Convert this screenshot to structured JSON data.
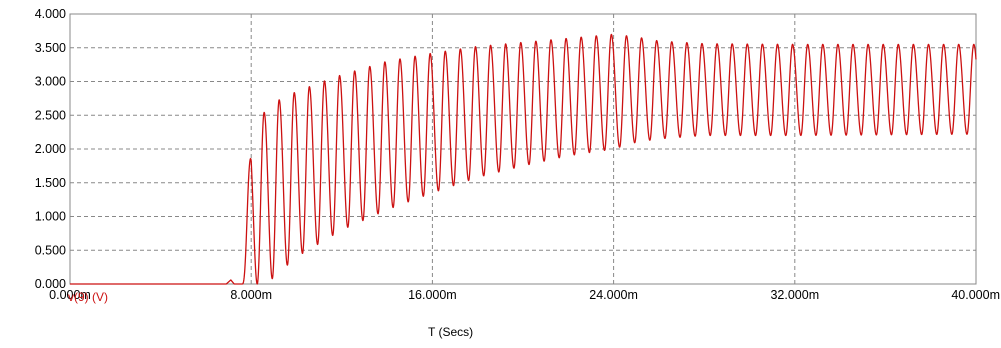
{
  "chart_data": {
    "type": "line",
    "title": "",
    "xlabel": "T (Secs)",
    "ylabel": "v(9) (V)",
    "xlim": [
      0,
      40
    ],
    "ylim": [
      0,
      4
    ],
    "x_unit": "m",
    "grid": true,
    "x_ticks": [
      0,
      8,
      16,
      24,
      32,
      40
    ],
    "x_tick_labels": [
      "0.000m",
      "8.000m",
      "16.000m",
      "24.000m",
      "32.000m",
      "40.000m"
    ],
    "y_ticks": [
      0,
      0.5,
      1,
      1.5,
      2,
      2.5,
      3,
      3.5,
      4
    ],
    "y_tick_labels": [
      "0.000",
      "0.500",
      "1.000",
      "1.500",
      "2.000",
      "2.500",
      "3.000",
      "3.500",
      "4.000"
    ],
    "series": [
      {
        "name": "v(9) (V)",
        "color": "#cc1111",
        "start_time": 7.6,
        "ripple_period": 0.6667,
        "ripple_duty": 0.45,
        "envelope_points": [
          {
            "t": 7.6,
            "low": 0.0,
            "high": 0.0
          },
          {
            "t": 8.0,
            "low": 0.0,
            "high": 2.2
          },
          {
            "t": 8.667,
            "low": 0.0,
            "high": 2.6
          },
          {
            "t": 9.333,
            "low": 0.2,
            "high": 2.75
          },
          {
            "t": 10.0,
            "low": 0.4,
            "high": 2.85
          },
          {
            "t": 11.0,
            "low": 0.6,
            "high": 2.98
          },
          {
            "t": 12.0,
            "low": 0.8,
            "high": 3.1
          },
          {
            "t": 14.0,
            "low": 1.1,
            "high": 3.3
          },
          {
            "t": 16.0,
            "low": 1.35,
            "high": 3.42
          },
          {
            "t": 18.0,
            "low": 1.58,
            "high": 3.52
          },
          {
            "t": 20.0,
            "low": 1.75,
            "high": 3.58
          },
          {
            "t": 22.0,
            "low": 1.9,
            "high": 3.64
          },
          {
            "t": 24.0,
            "low": 2.0,
            "high": 3.7
          },
          {
            "t": 25.0,
            "low": 2.1,
            "high": 3.66
          },
          {
            "t": 26.0,
            "low": 2.15,
            "high": 3.6
          },
          {
            "t": 28.0,
            "low": 2.2,
            "high": 3.56
          },
          {
            "t": 32.0,
            "low": 2.2,
            "high": 3.55
          },
          {
            "t": 40.0,
            "low": 2.22,
            "high": 3.55
          }
        ],
        "pre_start_value": 0.0,
        "small_bump": {
          "t": 7.1,
          "value": 0.06
        }
      }
    ]
  },
  "colors": {
    "background": "#ffffff",
    "grid": "#888888",
    "frame": "#888888",
    "trace": "#cc1111",
    "text": "#000000",
    "series_label": "#cc1111"
  }
}
